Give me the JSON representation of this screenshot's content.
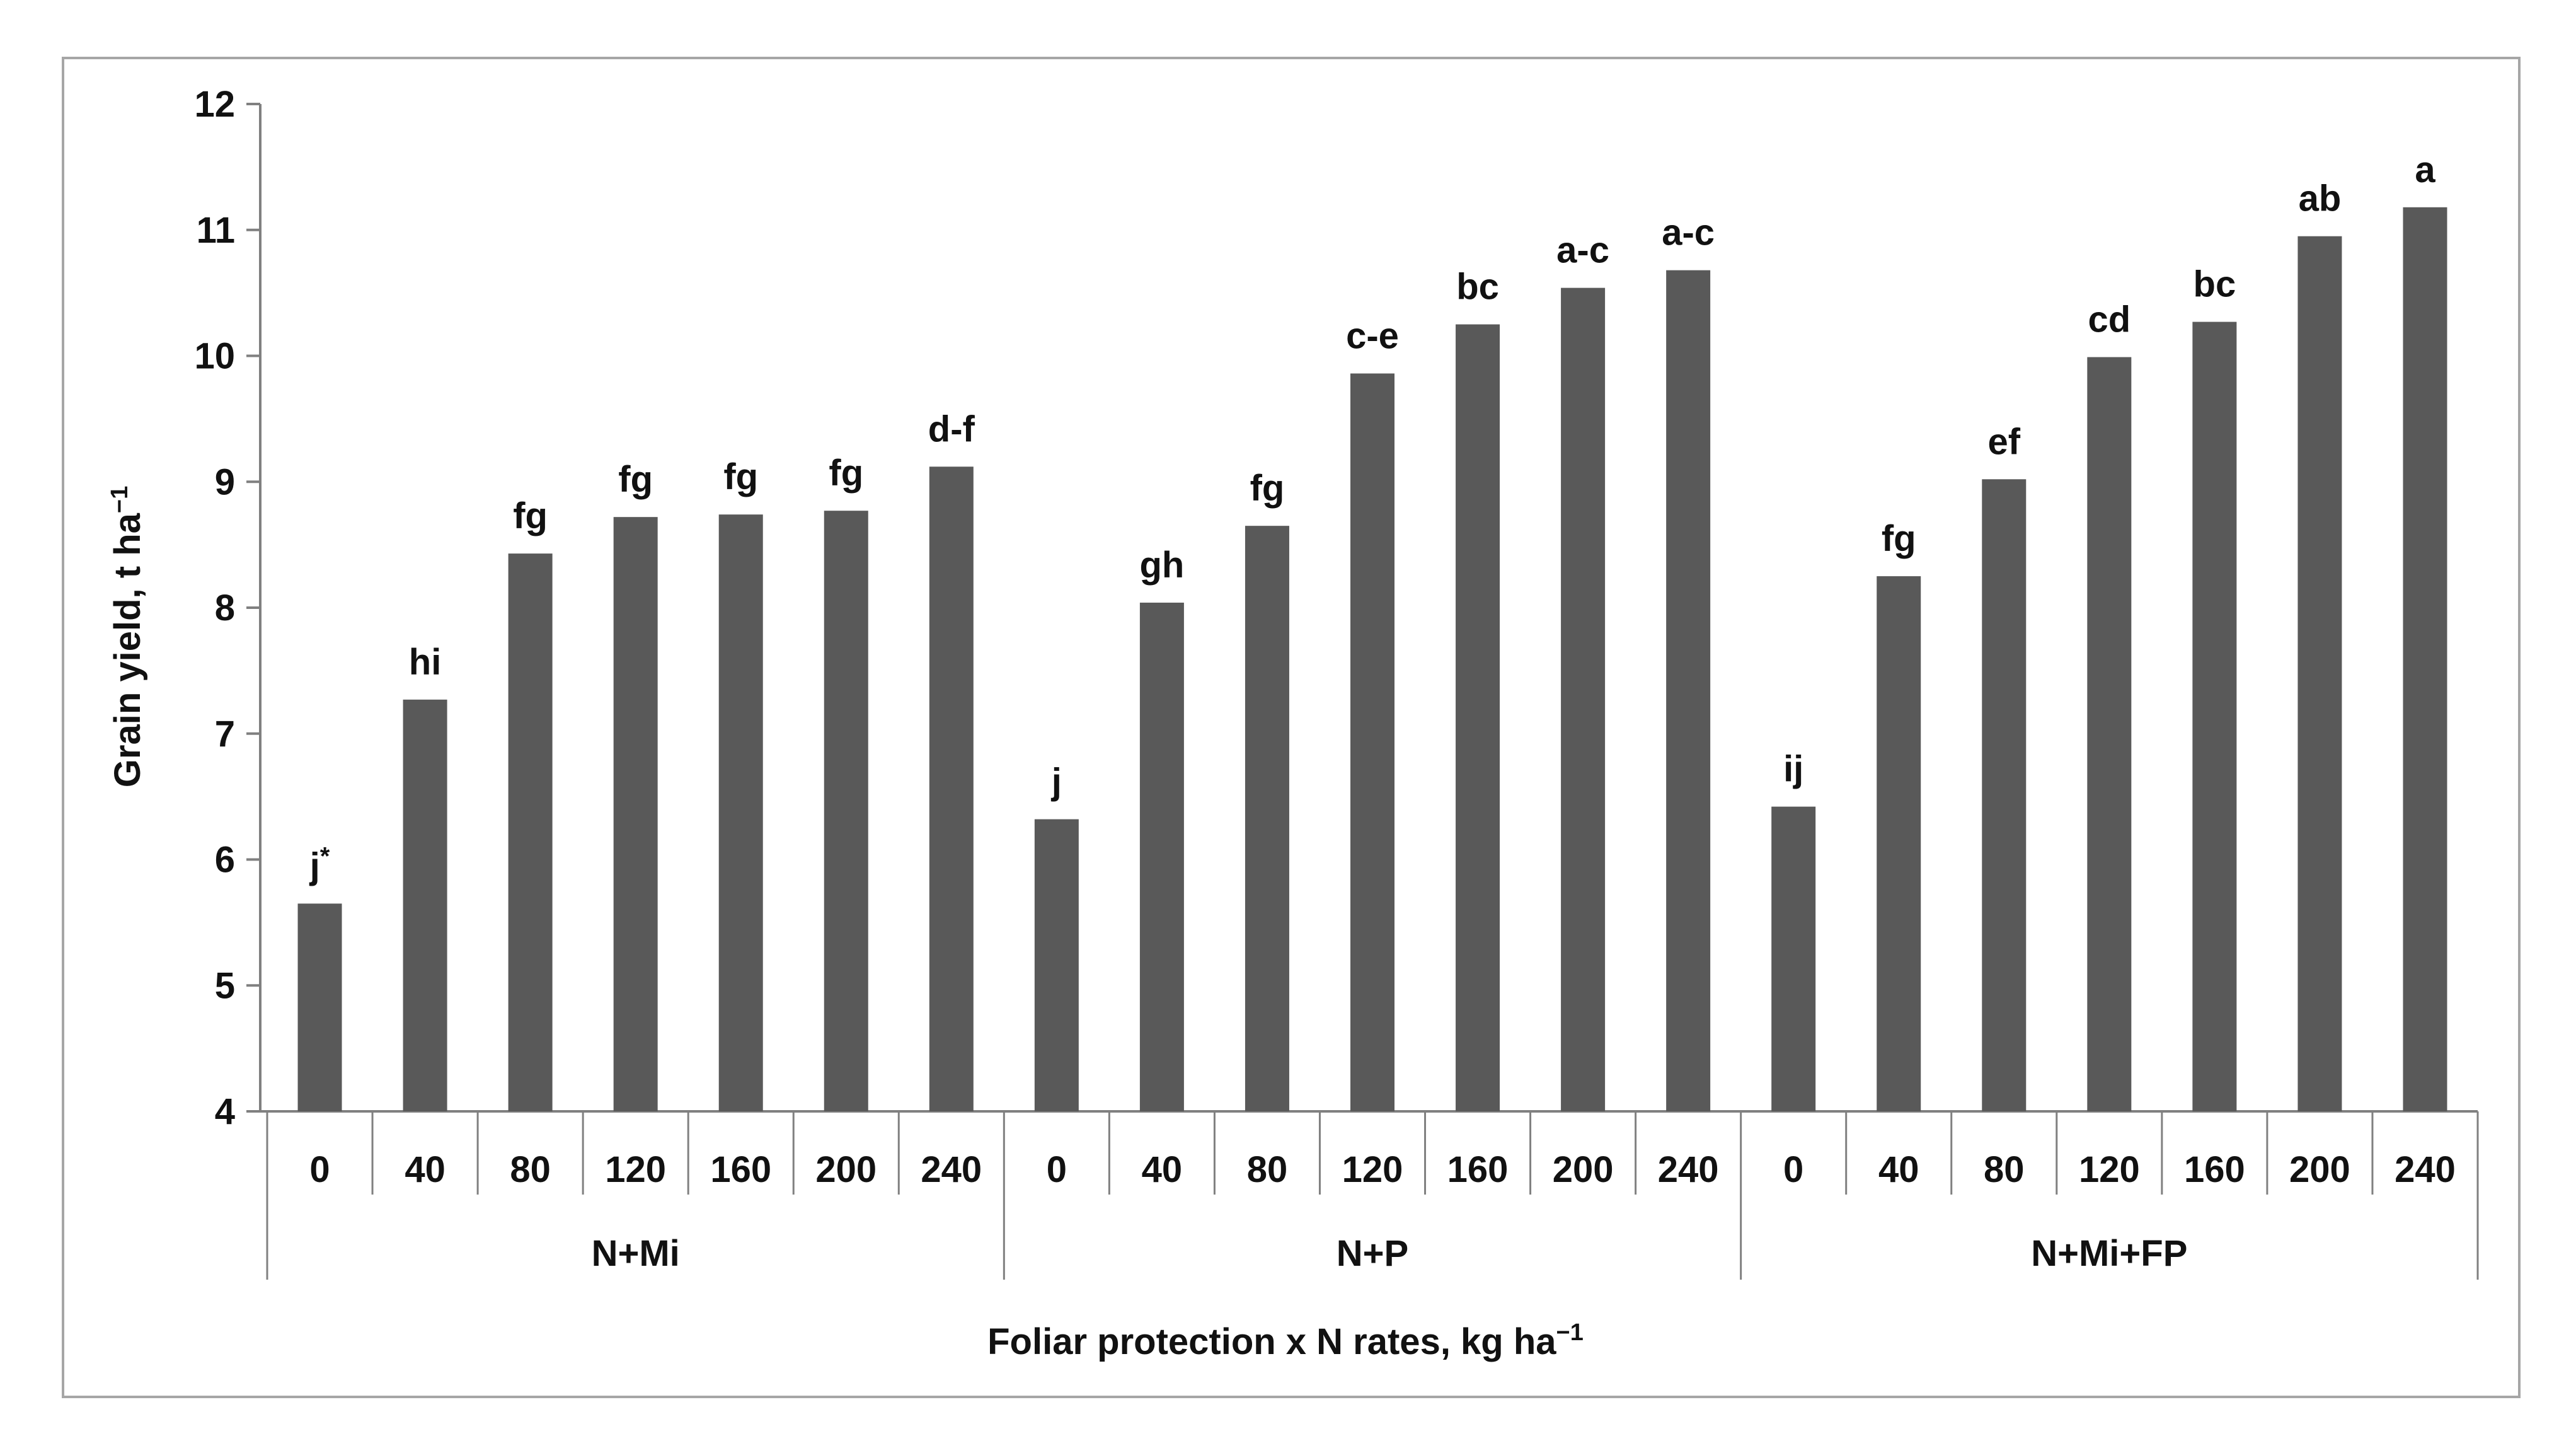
{
  "chart_data": {
    "type": "bar",
    "title": "",
    "xlabel": "Foliar protection x N rates, kg ha",
    "xlabel_superscript": "−1",
    "ylabel": "Grain yield, t ha",
    "ylabel_superscript": "−1",
    "ylim": [
      4,
      12
    ],
    "yticks": [
      "4",
      "5",
      "6",
      "7",
      "8",
      "9",
      "10",
      "11",
      "12"
    ],
    "grid": false,
    "legend": "none",
    "bar_color": "#595959",
    "groups": [
      {
        "name": "N+Mi",
        "categories": [
          "0",
          "40",
          "80",
          "120",
          "160",
          "200",
          "240"
        ],
        "values": [
          5.65,
          7.27,
          8.43,
          8.72,
          8.74,
          8.77,
          9.12
        ],
        "labels": [
          "j",
          "hi",
          "fg",
          "fg",
          "fg",
          "fg",
          "d-f"
        ]
      },
      {
        "name": "N+P",
        "categories": [
          "0",
          "40",
          "80",
          "120",
          "160",
          "200",
          "240"
        ],
        "values": [
          6.32,
          8.04,
          8.65,
          9.86,
          10.25,
          10.54,
          10.68
        ],
        "labels": [
          "j",
          "gh",
          "fg",
          "c-e",
          "bc",
          "a-c",
          "a-c"
        ]
      },
      {
        "name": "N+Mi+FP",
        "categories": [
          "0",
          "40",
          "80",
          "120",
          "160",
          "200",
          "240"
        ],
        "values": [
          6.42,
          8.25,
          9.02,
          9.99,
          10.27,
          10.95,
          11.18
        ],
        "labels": [
          "ij",
          "fg",
          "ef",
          "cd",
          "bc",
          "ab",
          "a"
        ]
      }
    ],
    "annotations": [
      {
        "group": 0,
        "index": 0,
        "superscript": "*"
      }
    ]
  }
}
